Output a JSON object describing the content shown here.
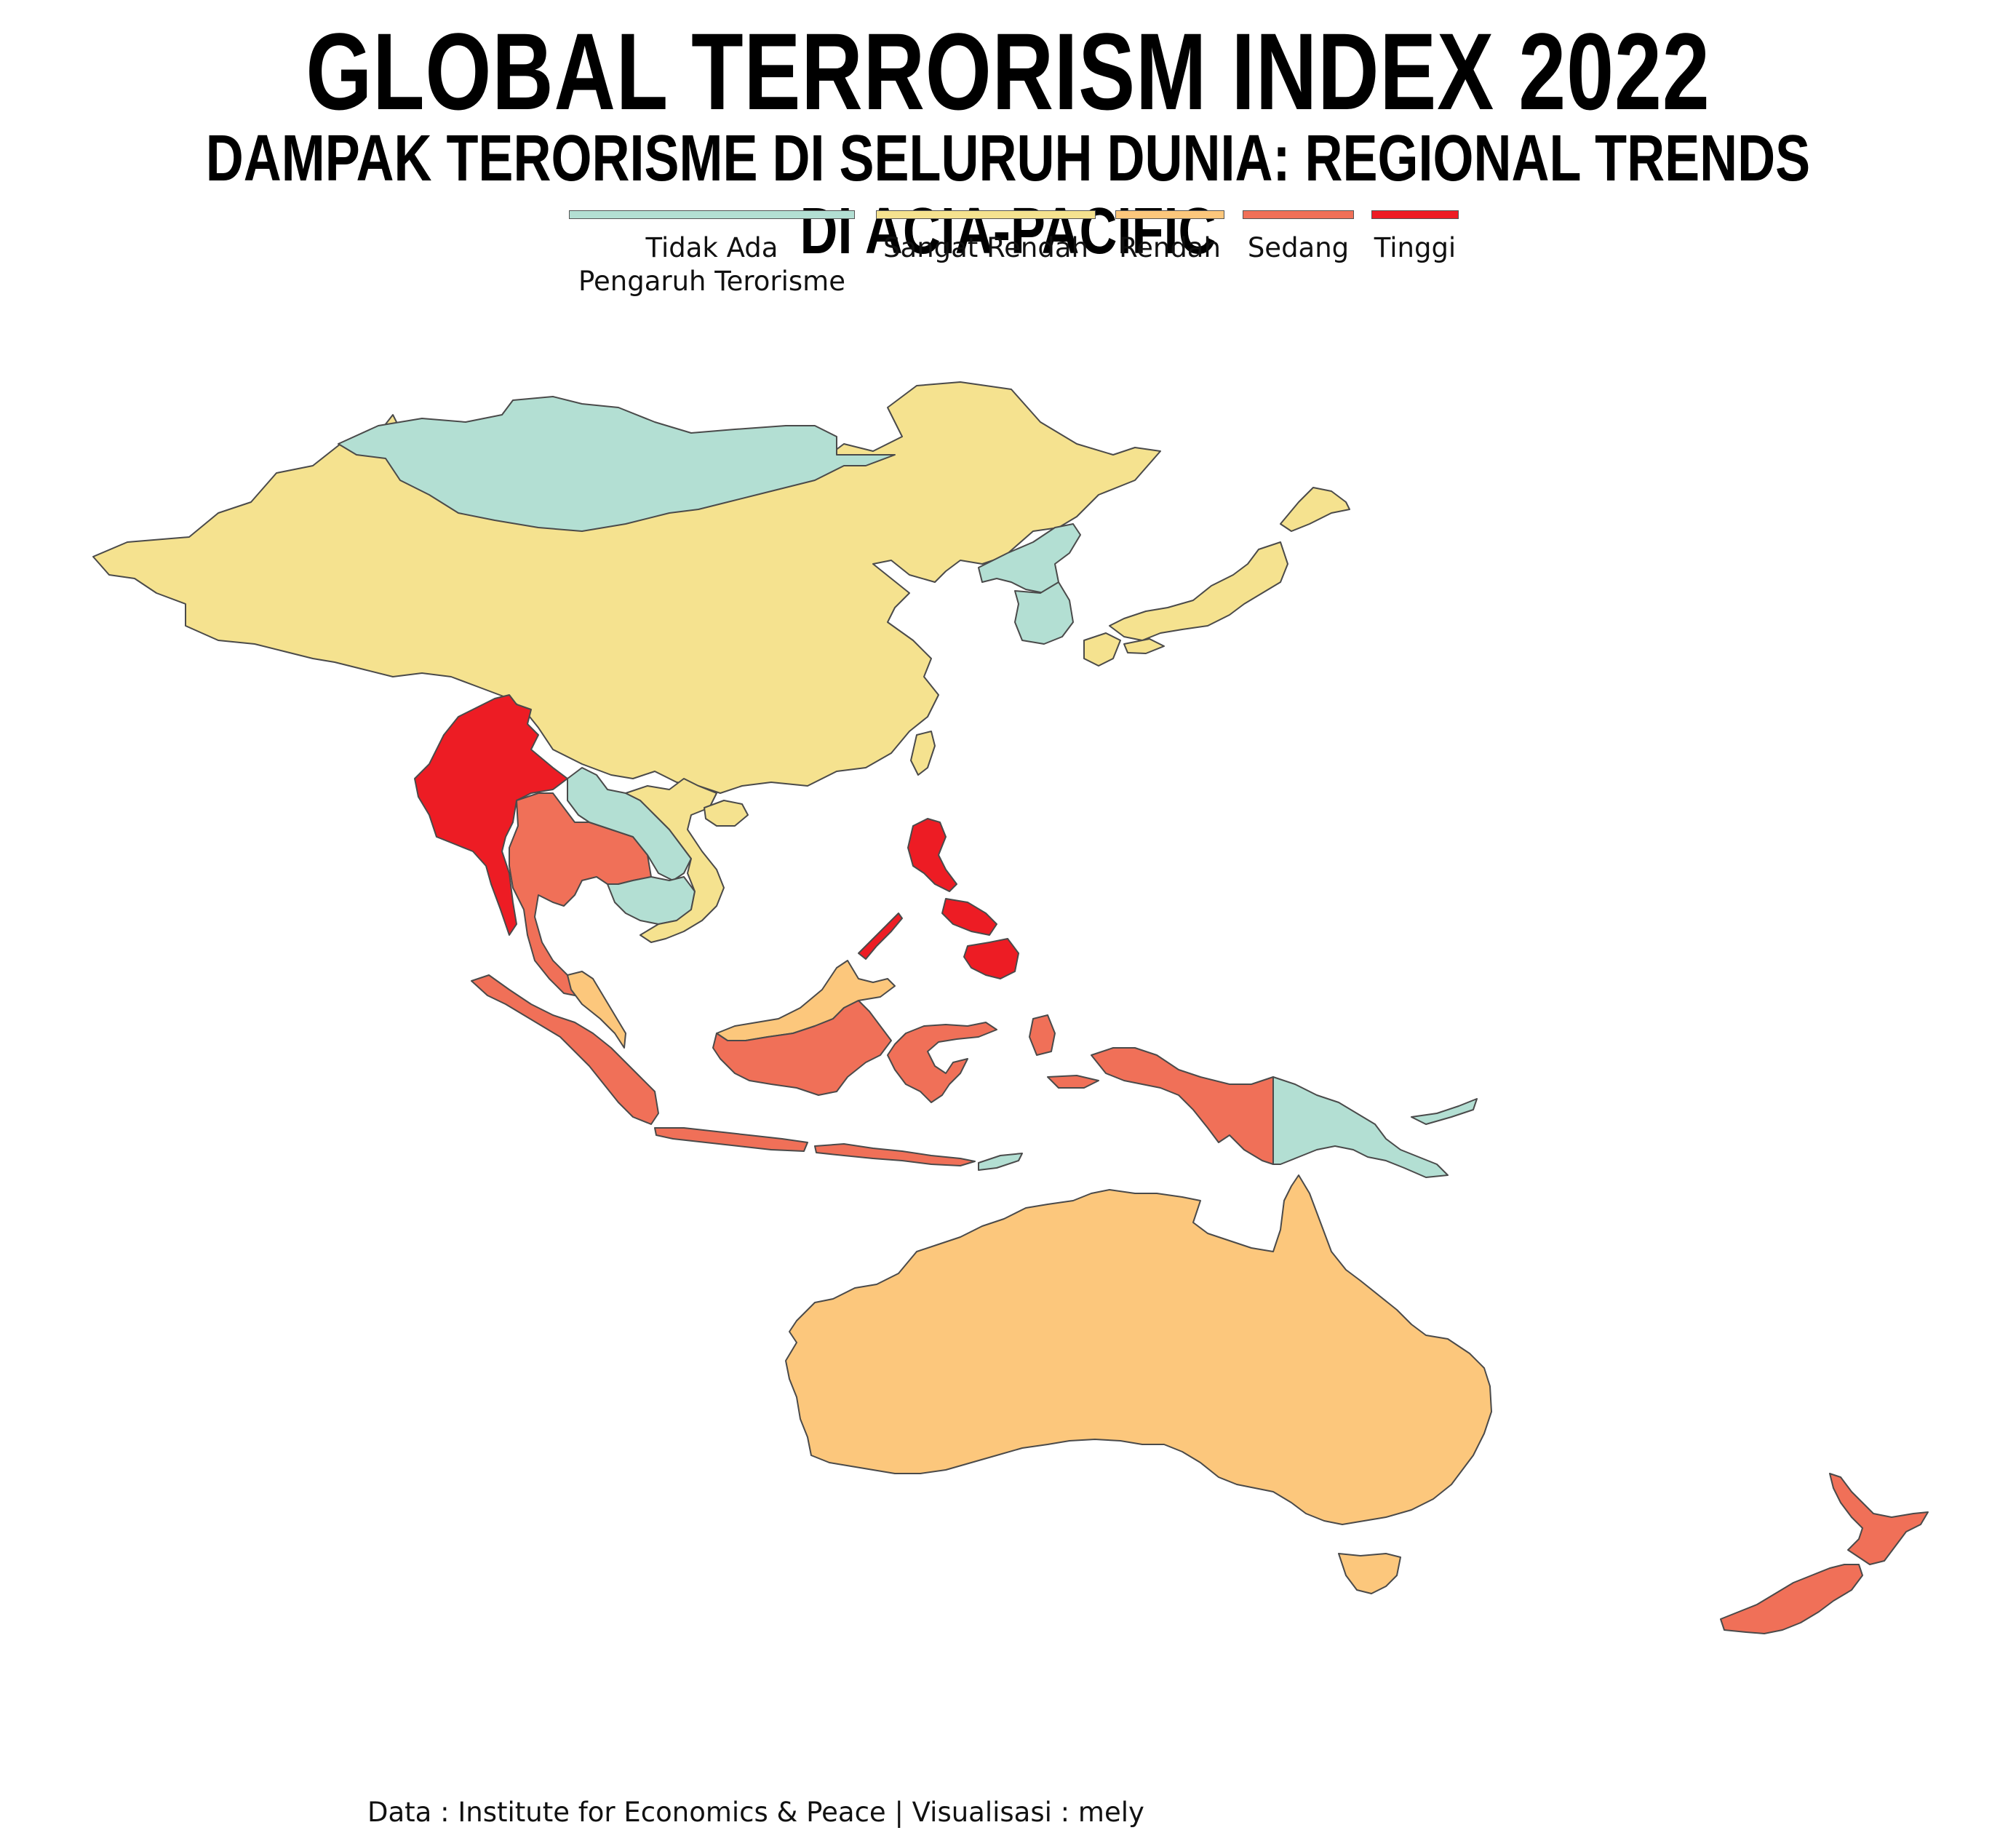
{
  "title": "GLOBAL TERRORISM INDEX 2022",
  "subtitle": "DAMPAK TERORISME DI SELURUH DUNIA: REGIONAL TRENDS DI ACIA-PACIFIC",
  "legend": [
    {
      "label": "Tidak Ada Pengaruh Terorisme",
      "line1": "Tidak Ada",
      "line2": "Pengaruh Terorisme",
      "color": "#b3dfd3"
    },
    {
      "label": "Sangat Rendah",
      "color": "#f5e28f"
    },
    {
      "label": "Rendah",
      "color": "#fcc77c"
    },
    {
      "label": "Sedang",
      "color": "#f07058"
    },
    {
      "label": "Tinggi",
      "color": "#ed1c24"
    }
  ],
  "caption": "Data : Institute for Economics & Peace | Visualisasi : mely",
  "countries": {
    "Mongolia": "Tidak Ada Pengaruh Terorisme",
    "China": "Sangat Rendah",
    "North Korea": "Tidak Ada Pengaruh Terorisme",
    "South Korea": "Tidak Ada Pengaruh Terorisme",
    "Japan": "Sangat Rendah",
    "Taiwan": "Sangat Rendah",
    "Myanmar": "Tinggi",
    "Thailand": "Sedang",
    "Laos": "Tidak Ada Pengaruh Terorisme",
    "Cambodia": "Tidak Ada Pengaruh Terorisme",
    "Vietnam": "Sangat Rendah",
    "Philippines": "Tinggi",
    "Malaysia": "Rendah",
    "Indonesia": "Sedang",
    "Timor-Leste": "Tidak Ada Pengaruh Terorisme",
    "Papua New Guinea": "Tidak Ada Pengaruh Terorisme",
    "Australia": "Rendah",
    "New Zealand": "Sedang"
  }
}
